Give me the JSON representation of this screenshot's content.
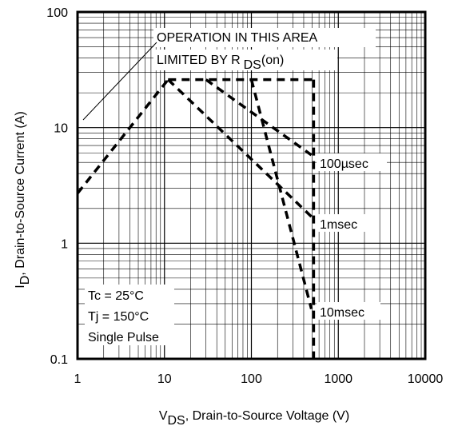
{
  "chart_data": {
    "type": "line",
    "title": "",
    "x_scale": "log",
    "y_scale": "log",
    "xlim": [
      1,
      10000
    ],
    "ylim": [
      0.1,
      100
    ],
    "grid": true,
    "x_tick_labels": [
      "1",
      "10",
      "100",
      "1000",
      "10000"
    ],
    "y_tick_labels": [
      "0.1",
      "1",
      "10",
      "100"
    ],
    "xlabel": {
      "main": "V",
      "sub": "DS",
      "rest": ", Drain-to-Source Voltage (V)"
    },
    "ylabel": {
      "main": "I",
      "sub": "D",
      "rest": ",  Drain-to-Source Current (A)"
    },
    "series": [
      {
        "label_text": "",
        "points": [
          [
            1,
            2.7
          ],
          [
            11,
            26
          ]
        ]
      },
      {
        "label_text": "",
        "points": [
          [
            11,
            26
          ],
          [
            520,
            26
          ]
        ]
      },
      {
        "label_text": "",
        "points": [
          [
            520,
            26
          ],
          [
            520,
            0.1
          ]
        ]
      },
      {
        "label_text": "100µsec",
        "points": [
          [
            30,
            26
          ],
          [
            490,
            5.8
          ]
        ]
      },
      {
        "label_text": "1msec",
        "points": [
          [
            11,
            26
          ],
          [
            490,
            1.7
          ]
        ]
      },
      {
        "label_text": "10msec",
        "points": [
          [
            100,
            26
          ],
          [
            490,
            0.27
          ]
        ]
      }
    ],
    "annotations": {
      "rds_line1": "OPERATION IN THIS AREA",
      "rds_line2_prefix": "LIMITED BY R",
      "rds_line2_sub": "DS",
      "rds_line2_suffix": "(on)",
      "conditions": [
        "Tc = 25°C",
        "Tj = 150°C",
        "Single Pulse"
      ]
    }
  }
}
